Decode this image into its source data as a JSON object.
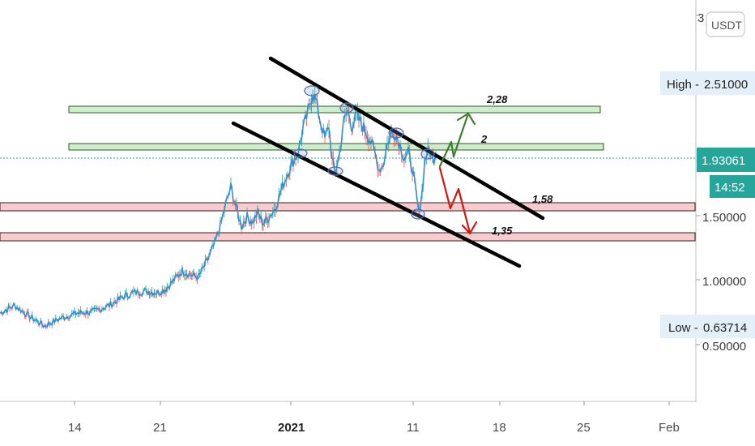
{
  "chart_data": {
    "type": "candlestick",
    "currency": "USDT",
    "y_axis_ticks": [
      {
        "label": "3",
        "value": 3.0
      },
      {
        "label": "1.50000",
        "value": 1.5
      },
      {
        "label": "1.00000",
        "value": 1.0
      },
      {
        "label": "0.50000",
        "value": 0.5
      }
    ],
    "x_axis_ticks": [
      "14",
      "21",
      "2021",
      "11",
      "18",
      "25",
      "Feb"
    ],
    "high": {
      "label": "High",
      "value": "2.51000"
    },
    "low": {
      "label": "Low",
      "value": "0.63714"
    },
    "last_price": {
      "value": "1.93061",
      "countdown": "14:52"
    },
    "annotations": [
      {
        "label": "2,28",
        "value": 2.28
      },
      {
        "label": "2",
        "value": 2.0
      },
      {
        "label": "1,58",
        "value": 1.58
      },
      {
        "label": "1,35",
        "value": 1.35
      }
    ],
    "horizontal_zones": [
      {
        "level": 2.28,
        "color": "#c8e6c9",
        "border": "#2e5e1e"
      },
      {
        "level": 2.0,
        "color": "#c8e6c9",
        "border": "#2e5e1e"
      },
      {
        "level": 1.58,
        "color": "#f8c8c8",
        "border": "#3a1a1a"
      },
      {
        "level": 1.35,
        "color": "#f8c8c8",
        "border": "#3a1a1a"
      }
    ],
    "channel": "descending",
    "price_path": [
      [
        0,
        0.74
      ],
      [
        18,
        0.8
      ],
      [
        35,
        0.72
      ],
      [
        55,
        0.64
      ],
      [
        75,
        0.7
      ],
      [
        95,
        0.74
      ],
      [
        115,
        0.75
      ],
      [
        135,
        0.8
      ],
      [
        150,
        0.86
      ],
      [
        165,
        0.9
      ],
      [
        180,
        0.91
      ],
      [
        195,
        0.9
      ],
      [
        205,
        0.93
      ],
      [
        215,
        1.0
      ],
      [
        225,
        1.07
      ],
      [
        235,
        1.04
      ],
      [
        245,
        1.02
      ],
      [
        255,
        1.14
      ],
      [
        265,
        1.28
      ],
      [
        272,
        1.42
      ],
      [
        280,
        1.62
      ],
      [
        285,
        1.72
      ],
      [
        292,
        1.55
      ],
      [
        298,
        1.42
      ],
      [
        305,
        1.49
      ],
      [
        312,
        1.45
      ],
      [
        318,
        1.52
      ],
      [
        325,
        1.44
      ],
      [
        332,
        1.49
      ],
      [
        340,
        1.56
      ],
      [
        347,
        1.7
      ],
      [
        355,
        1.83
      ],
      [
        362,
        1.93
      ],
      [
        368,
        1.99
      ],
      [
        374,
        2.18
      ],
      [
        380,
        2.3
      ],
      [
        386,
        2.46
      ],
      [
        390,
        2.4
      ],
      [
        396,
        2.22
      ],
      [
        401,
        2.1
      ],
      [
        406,
        2.2
      ],
      [
        410,
        1.93
      ],
      [
        414,
        1.84
      ],
      [
        419,
        1.98
      ],
      [
        424,
        2.22
      ],
      [
        429,
        2.32
      ],
      [
        434,
        2.2
      ],
      [
        440,
        2.28
      ],
      [
        446,
        2.22
      ],
      [
        452,
        2.15
      ],
      [
        458,
        2.08
      ],
      [
        463,
        1.98
      ],
      [
        468,
        1.86
      ],
      [
        473,
        1.9
      ],
      [
        478,
        2.06
      ],
      [
        483,
        2.14
      ],
      [
        488,
        2.14
      ],
      [
        494,
        2.05
      ],
      [
        499,
        1.95
      ],
      [
        504,
        1.99
      ],
      [
        509,
        1.87
      ],
      [
        513,
        1.7
      ],
      [
        517,
        1.52
      ],
      [
        521,
        1.68
      ],
      [
        525,
        1.96
      ],
      [
        530,
        2.01
      ],
      [
        534,
        1.95
      ],
      [
        538,
        1.97
      ]
    ]
  },
  "colors": {
    "candle_up": "#26a69a",
    "candle_down": "#ef5350",
    "channel_line": "#000000",
    "arrow_up": "#3e7d2c",
    "arrow_down": "#d3140f",
    "box_bg": "#e3f0fa",
    "last_price_bg": "#26a69a"
  },
  "icons": {
    "currency_badge": "rounded-badge"
  }
}
